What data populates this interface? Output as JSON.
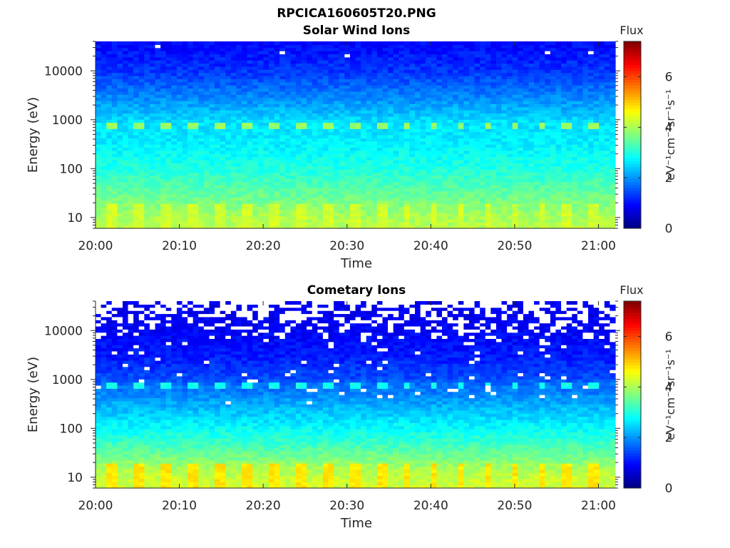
{
  "figure_title": "RPCICA160605T20.PNG",
  "colors": {
    "missing": "#ffffff",
    "axis": "#262626"
  },
  "chart_data": [
    {
      "type": "heatmap",
      "title": "Solar Wind Ions",
      "xlabel": "Time",
      "ylabel": "Energy (eV)",
      "x_range": [
        "20:00",
        "21:02"
      ],
      "x_ticks": [
        "20:00",
        "20:10",
        "20:20",
        "20:30",
        "20:40",
        "20:50",
        "21:00"
      ],
      "y_scale": "log",
      "y_range": [
        6,
        40000
      ],
      "y_ticks": [
        10,
        100,
        1000,
        10000
      ],
      "y_tick_labels": [
        "10",
        "100",
        "1000",
        "10000"
      ],
      "colorbar": {
        "label": "Flux",
        "units": "eV⁻¹cm⁻²sr⁻¹s⁻¹",
        "colormap": "jet",
        "range": [
          0,
          7.4
        ],
        "ticks": [
          0,
          2,
          4,
          6
        ]
      },
      "profile": {
        "energies": [
          6,
          10,
          20,
          50,
          100,
          300,
          600,
          750,
          1000,
          3000,
          10000,
          30000,
          40000
        ],
        "flux": [
          4.1,
          4.0,
          3.7,
          3.3,
          3.0,
          2.7,
          2.6,
          2.6,
          2.5,
          1.9,
          1.3,
          1.0,
          1.0
        ]
      },
      "peak_band": {
        "energy": 720,
        "flux": 3.9,
        "period_minutes": 3.2
      },
      "low_energy_peak": {
        "max_energy": 20,
        "flux": 4.3,
        "period_minutes": 3.2
      },
      "missing_top_fraction": 0.0
    },
    {
      "type": "heatmap",
      "title": "Cometary Ions",
      "xlabel": "Time",
      "ylabel": "Energy (eV)",
      "x_range": [
        "20:00",
        "21:02"
      ],
      "x_ticks": [
        "20:00",
        "20:10",
        "20:20",
        "20:30",
        "20:40",
        "20:50",
        "21:00"
      ],
      "y_scale": "log",
      "y_range": [
        6,
        40000
      ],
      "y_ticks": [
        10,
        100,
        1000,
        10000
      ],
      "y_tick_labels": [
        "10",
        "100",
        "1000",
        "10000"
      ],
      "colorbar": {
        "label": "Flux",
        "units": "eV⁻¹cm⁻²sr⁻¹s⁻¹",
        "colormap": "jet",
        "range": [
          0,
          7.4
        ],
        "ticks": [
          0,
          2,
          4,
          6
        ]
      },
      "profile": {
        "energies": [
          6,
          10,
          20,
          50,
          100,
          300,
          600,
          750,
          1000,
          3000,
          10000,
          30000,
          40000
        ],
        "flux": [
          4.3,
          4.2,
          3.8,
          3.2,
          2.8,
          2.2,
          1.8,
          1.8,
          1.5,
          1.1,
          0.9,
          0.8,
          0.8
        ]
      },
      "peak_band": {
        "energy": 720,
        "flux": 2.9,
        "period_minutes": 3.2
      },
      "low_energy_peak": {
        "max_energy": 20,
        "flux": 4.8,
        "period_minutes": 3.2
      },
      "missing_top_fraction": 0.45
    }
  ]
}
